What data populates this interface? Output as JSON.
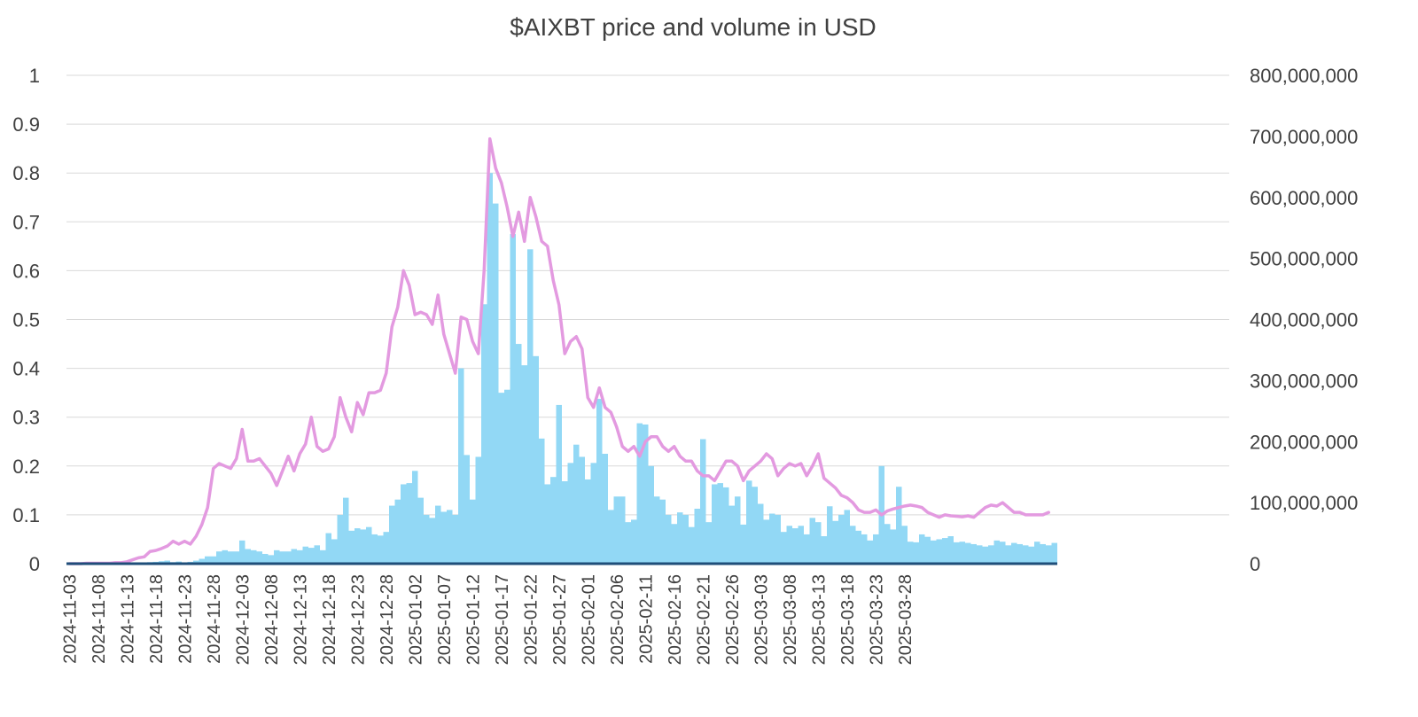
{
  "chart_data": {
    "type": "bar",
    "title": "$AIXBT price and volume in USD",
    "xlabel": "",
    "y_left": {
      "label": "",
      "ylim": [
        0,
        1
      ],
      "ticks": [
        "0",
        "0.1",
        "0.2",
        "0.3",
        "0.4",
        "0.5",
        "0.6",
        "0.7",
        "0.8",
        "0.9",
        "1"
      ]
    },
    "y_right": {
      "label": "",
      "ylim": [
        0,
        800000000
      ],
      "ticks": [
        "0",
        "100,000,000",
        "200,000,000",
        "300,000,000",
        "400,000,000",
        "500,000,000",
        "600,000,000",
        "700,000,000",
        "800,000,000"
      ]
    },
    "x_tick_labels": [
      "2024-11-03",
      "2024-11-08",
      "2024-11-13",
      "2024-11-18",
      "2024-11-23",
      "2024-11-28",
      "2024-12-03",
      "2024-12-08",
      "2024-12-13",
      "2024-12-18",
      "2024-12-23",
      "2024-12-28",
      "2025-01-02",
      "2025-01-07",
      "2025-01-12",
      "2025-01-17",
      "2025-01-22",
      "2025-01-27",
      "2025-02-01",
      "2025-02-06",
      "2025-02-11",
      "2025-02-16",
      "2025-02-21",
      "2025-02-26",
      "2025-03-03",
      "2025-03-08",
      "2025-03-13",
      "2025-03-18",
      "2025-03-23",
      "2025-03-28"
    ],
    "x_start": "2024-11-03",
    "grid": true,
    "legend": "none",
    "colors": {
      "volume": "#92d8f5",
      "price": "#e39ae0",
      "baseline": "#1f4e79"
    },
    "series": [
      {
        "type": "line",
        "axis": "left",
        "values": [
          0,
          0,
          0,
          0.001,
          0.001,
          0.001,
          0.001,
          0.001,
          0.002,
          0.002,
          0.004,
          0.008,
          0.012,
          0.014,
          0.025,
          0.027,
          0.031,
          0.036,
          0.046,
          0.04,
          0.046,
          0.04,
          0.056,
          0.08,
          0.115,
          0.195,
          0.205,
          0.2,
          0.195,
          0.215,
          0.275,
          0.21,
          0.21,
          0.215,
          0.2,
          0.185,
          0.16,
          0.19,
          0.22,
          0.19,
          0.225,
          0.245,
          0.3,
          0.24,
          0.23,
          0.235,
          0.26,
          0.34,
          0.3,
          0.27,
          0.33,
          0.305,
          0.35,
          0.35,
          0.355,
          0.39,
          0.485,
          0.525,
          0.6,
          0.57,
          0.51,
          0.515,
          0.51,
          0.49,
          0.55,
          0.47,
          0.43,
          0.39,
          0.505,
          0.5,
          0.455,
          0.43,
          0.6,
          0.87,
          0.81,
          0.78,
          0.73,
          0.67,
          0.72,
          0.66,
          0.75,
          0.71,
          0.66,
          0.65,
          0.58,
          0.53,
          0.43,
          0.455,
          0.465,
          0.44,
          0.34,
          0.32,
          0.36,
          0.32,
          0.31,
          0.28,
          0.24,
          0.23,
          0.24,
          0.22,
          0.25,
          0.26,
          0.26,
          0.24,
          0.23,
          0.24,
          0.22,
          0.21,
          0.21,
          0.19,
          0.18,
          0.18,
          0.17,
          0.19,
          0.21,
          0.21,
          0.2,
          0.17,
          0.19,
          0.2,
          0.21,
          0.225,
          0.215,
          0.18,
          0.195,
          0.205,
          0.2,
          0.205,
          0.18,
          0.2,
          0.225,
          0.175,
          0.165,
          0.155,
          0.14,
          0.135,
          0.125,
          0.11,
          0.105,
          0.105,
          0.11,
          0.1,
          0.108,
          0.112,
          0.115,
          0.118,
          0.12,
          0.118,
          0.115,
          0.105,
          0.1,
          0.095,
          0.1,
          0.098,
          0.097,
          0.096,
          0.098,
          0.095,
          0.105,
          0.115,
          0.12,
          0.118,
          0.125,
          0.115,
          0.105,
          0.105,
          0.1,
          0.1,
          0.1,
          0.1,
          0.105
        ]
      },
      {
        "type": "bar",
        "axis": "right",
        "values": [
          0,
          0,
          0,
          0,
          0,
          0,
          0,
          0,
          0,
          0,
          500000,
          1000000,
          1500000,
          1800000,
          2500000,
          3000000,
          4000000,
          5000000,
          2500000,
          3500000,
          2000000,
          3000000,
          5000000,
          8000000,
          12000000,
          12000000,
          20000000,
          22000000,
          20000000,
          20000000,
          38000000,
          24000000,
          22000000,
          20000000,
          16000000,
          14000000,
          22000000,
          20000000,
          20000000,
          24000000,
          22000000,
          28000000,
          26000000,
          30000000,
          22000000,
          50000000,
          40000000,
          80000000,
          108000000,
          54000000,
          58000000,
          56000000,
          60000000,
          48000000,
          46000000,
          52000000,
          95000000,
          105000000,
          130000000,
          132000000,
          152000000,
          108000000,
          80000000,
          75000000,
          95000000,
          85000000,
          88000000,
          80000000,
          320000000,
          178000000,
          105000000,
          175000000,
          425000000,
          640000000,
          590000000,
          280000000,
          285000000,
          540000000,
          360000000,
          325000000,
          515000000,
          340000000,
          205000000,
          130000000,
          142000000,
          260000000,
          135000000,
          165000000,
          195000000,
          175000000,
          138000000,
          165000000,
          270000000,
          180000000,
          88000000,
          110000000,
          110000000,
          68000000,
          72000000,
          230000000,
          228000000,
          160000000,
          110000000,
          105000000,
          80000000,
          65000000,
          84000000,
          80000000,
          60000000,
          90000000,
          204000000,
          68000000,
          130000000,
          132000000,
          125000000,
          95000000,
          110000000,
          64000000,
          136000000,
          126000000,
          98000000,
          72000000,
          82000000,
          80000000,
          52000000,
          62000000,
          58000000,
          62000000,
          48000000,
          75000000,
          68000000,
          45000000,
          94000000,
          70000000,
          80000000,
          88000000,
          62000000,
          54000000,
          48000000,
          38000000,
          48000000,
          160000000,
          65000000,
          56000000,
          126000000,
          62000000,
          36000000,
          35000000,
          48000000,
          44000000,
          38000000,
          40000000,
          42000000,
          45000000,
          35000000,
          36000000,
          34000000,
          32000000,
          30000000,
          28000000,
          30000000,
          38000000,
          36000000,
          30000000,
          34000000,
          32000000,
          30000000,
          28000000,
          36000000,
          32000000,
          30000000,
          34000000
        ]
      }
    ]
  }
}
